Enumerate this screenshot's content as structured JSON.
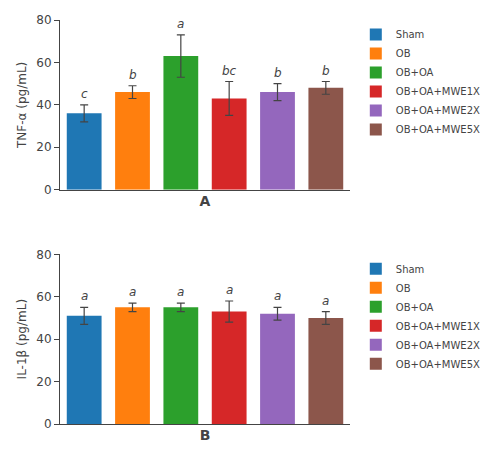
{
  "chart_data": [
    {
      "type": "bar",
      "xlabel": "A",
      "ylabel": "TNF-α (pg/mL)",
      "categories": [
        "Sham",
        "OB",
        "OB+OA",
        "OB+OA+MWE1X",
        "OB+OA+MWE2X",
        "OB+OA+MWE5X"
      ],
      "values": [
        36,
        46,
        63,
        43,
        46,
        48
      ],
      "errors": [
        4,
        3,
        10,
        8,
        4,
        3
      ],
      "annotations": [
        "c",
        "b",
        "a",
        "bc",
        "b",
        "b"
      ],
      "colors": [
        "#1f77b4",
        "#ff7f0e",
        "#2ca02c",
        "#d62728",
        "#9467bd",
        "#8c564b"
      ],
      "ylim": [
        0,
        80
      ],
      "yticks": [
        0,
        20,
        40,
        60,
        80
      ],
      "grid": false,
      "legend": "right",
      "tick_labels": "y"
    },
    {
      "type": "bar",
      "xlabel": "B",
      "ylabel": "IL-1β (pg/mL)",
      "categories": [
        "Sham",
        "OB",
        "OB+OA",
        "OB+OA+MWE1X",
        "OB+OA+MWE2X",
        "OB+OA+MWE5X"
      ],
      "values": [
        51,
        55,
        55,
        53,
        52,
        50
      ],
      "errors": [
        4,
        2,
        2,
        5,
        3,
        3
      ],
      "annotations": [
        "a",
        "a",
        "a",
        "a",
        "a",
        "a"
      ],
      "colors": [
        "#1f77b4",
        "#ff7f0e",
        "#2ca02c",
        "#d62728",
        "#9467bd",
        "#8c564b"
      ],
      "ylim": [
        0,
        80
      ],
      "yticks": [
        0,
        20,
        40,
        60,
        80
      ],
      "grid": false,
      "legend": "right",
      "tick_labels": "y"
    }
  ]
}
